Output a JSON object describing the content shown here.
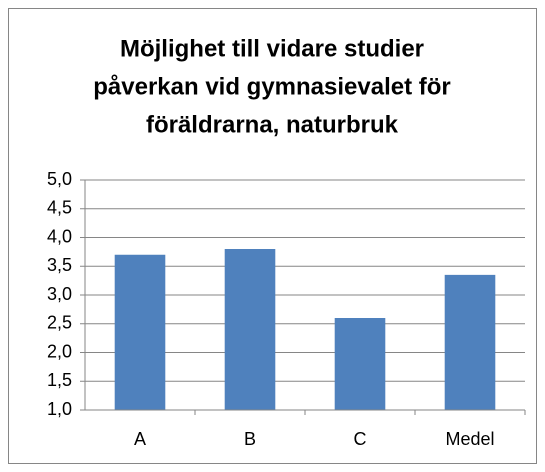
{
  "chart_data": {
    "type": "bar",
    "title": [
      "Möjlighet till vidare studier",
      "påverkan vid gymnasievalet för",
      "föräldrarna, naturbruk"
    ],
    "categories": [
      "A",
      "B",
      "C",
      "Medel"
    ],
    "values": [
      3.7,
      3.8,
      2.6,
      3.35
    ],
    "color": "#4f81bd",
    "ylim": [
      1,
      5
    ],
    "yticks": [
      {
        "value": 1,
        "label": "1,0"
      },
      {
        "value": 1.5,
        "label": "1,5"
      },
      {
        "value": 2,
        "label": "2,0"
      },
      {
        "value": 2.5,
        "label": "2,5"
      },
      {
        "value": 3,
        "label": "3,0"
      },
      {
        "value": 3.5,
        "label": "3,5"
      },
      {
        "value": 4,
        "label": "4,0"
      },
      {
        "value": 4.5,
        "label": "4,5"
      },
      {
        "value": 5,
        "label": "5,0"
      }
    ],
    "grid": true
  }
}
